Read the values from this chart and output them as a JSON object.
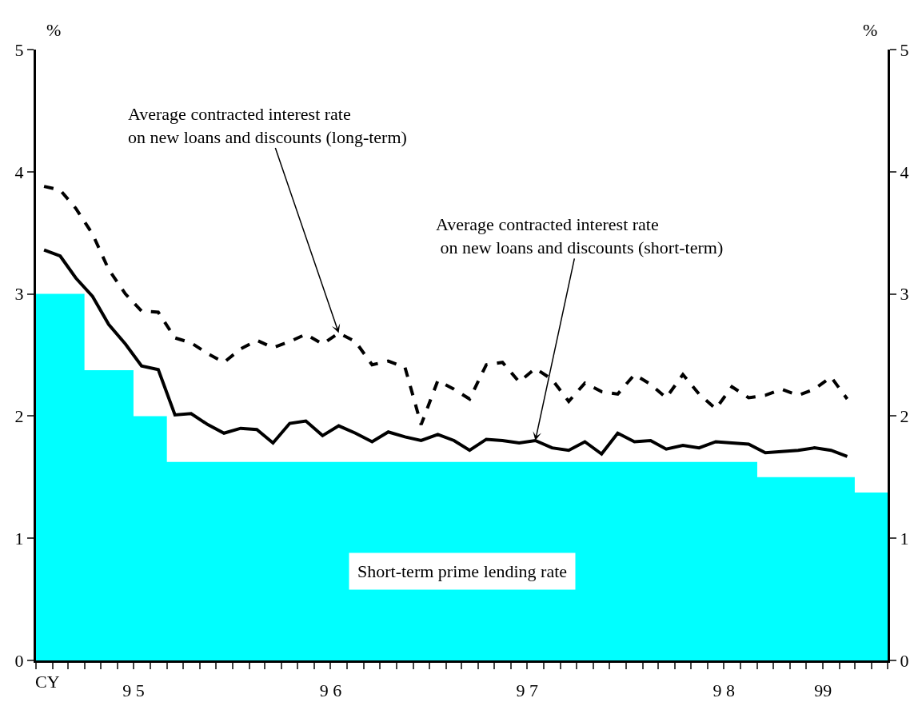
{
  "chart_data": {
    "type": "line",
    "xlabel": "CY",
    "ylabel": "%",
    "y2label": "%",
    "xlim": [
      "1995-01",
      "1999-05"
    ],
    "xticks": [
      {
        "value": "1995-01",
        "label": null
      },
      {
        "value": "1995-02",
        "label": null
      },
      {
        "value": "1995-03",
        "label": null
      },
      {
        "value": "1995-04",
        "label": null
      },
      {
        "value": "1995-05",
        "label": null
      },
      {
        "value": "1995-06",
        "label": null
      },
      {
        "value": "1995-07",
        "label": "9 5"
      },
      {
        "value": "1995-08",
        "label": null
      },
      {
        "value": "1995-09",
        "label": null
      },
      {
        "value": "1995-10",
        "label": null
      },
      {
        "value": "1995-11",
        "label": null
      },
      {
        "value": "1995-12",
        "label": null
      },
      {
        "value": "1996-01",
        "label": null
      },
      {
        "value": "1996-02",
        "label": null
      },
      {
        "value": "1996-03",
        "label": null
      },
      {
        "value": "1996-04",
        "label": null
      },
      {
        "value": "1996-05",
        "label": null
      },
      {
        "value": "1996-06",
        "label": null
      },
      {
        "value": "1996-07",
        "label": "9 6"
      },
      {
        "value": "1996-08",
        "label": null
      },
      {
        "value": "1996-09",
        "label": null
      },
      {
        "value": "1996-10",
        "label": null
      },
      {
        "value": "1996-11",
        "label": null
      },
      {
        "value": "1996-12",
        "label": null
      },
      {
        "value": "1997-01",
        "label": null
      },
      {
        "value": "1997-02",
        "label": null
      },
      {
        "value": "1997-03",
        "label": null
      },
      {
        "value": "1997-04",
        "label": null
      },
      {
        "value": "1997-05",
        "label": null
      },
      {
        "value": "1997-06",
        "label": null
      },
      {
        "value": "1997-07",
        "label": "9 7"
      },
      {
        "value": "1997-08",
        "label": null
      },
      {
        "value": "1997-09",
        "label": null
      },
      {
        "value": "1997-10",
        "label": null
      },
      {
        "value": "1997-11",
        "label": null
      },
      {
        "value": "1997-12",
        "label": null
      },
      {
        "value": "1998-01",
        "label": null
      },
      {
        "value": "1998-02",
        "label": null
      },
      {
        "value": "1998-03",
        "label": null
      },
      {
        "value": "1998-04",
        "label": null
      },
      {
        "value": "1998-05",
        "label": null
      },
      {
        "value": "1998-06",
        "label": null
      },
      {
        "value": "1998-07",
        "label": "9 8"
      },
      {
        "value": "1998-08",
        "label": null
      },
      {
        "value": "1998-09",
        "label": null
      },
      {
        "value": "1998-10",
        "label": null
      },
      {
        "value": "1998-11",
        "label": null
      },
      {
        "value": "1998-12",
        "label": null
      },
      {
        "value": "1999-01",
        "label": "99"
      },
      {
        "value": "1999-02",
        "label": null
      },
      {
        "value": "1999-03",
        "label": null
      },
      {
        "value": "1999-04",
        "label": null
      },
      {
        "value": "1999-05",
        "label": null
      }
    ],
    "ylim": [
      0,
      5
    ],
    "yticks": [
      0,
      1,
      2,
      3,
      4,
      5
    ],
    "y2lim": [
      0,
      5
    ],
    "y2ticks": [
      0,
      1,
      2,
      3,
      4,
      5
    ],
    "legend": false,
    "marker": "none",
    "series": [
      {
        "type": "area",
        "color": "#00ffff",
        "x": [
          "1995-01",
          "1995-02",
          "1995-03",
          "1995-04",
          "1995-05",
          "1995-06",
          "1995-07",
          "1995-08",
          "1995-09",
          "1995-10",
          "1995-11",
          "1995-12",
          "1996-01",
          "1996-02",
          "1996-03",
          "1996-04",
          "1996-05",
          "1996-06",
          "1996-07",
          "1996-08",
          "1996-09",
          "1996-10",
          "1996-11",
          "1996-12",
          "1997-01",
          "1997-02",
          "1997-03",
          "1997-04",
          "1997-05",
          "1997-06",
          "1997-07",
          "1997-08",
          "1997-09",
          "1997-10",
          "1997-11",
          "1997-12",
          "1998-01",
          "1998-02",
          "1998-03",
          "1998-04",
          "1998-05",
          "1998-06",
          "1998-07",
          "1998-08",
          "1998-09",
          "1998-10",
          "1998-11",
          "1998-12",
          "1999-01",
          "1999-02",
          "1999-03",
          "1999-04",
          "1999-05"
        ],
        "values": [
          3.0,
          3.0,
          3.0,
          2.375,
          2.375,
          2.375,
          2.0,
          2.0,
          1.625,
          1.625,
          1.625,
          1.625,
          1.625,
          1.625,
          1.625,
          1.625,
          1.625,
          1.625,
          1.625,
          1.625,
          1.625,
          1.625,
          1.625,
          1.625,
          1.625,
          1.625,
          1.625,
          1.625,
          1.625,
          1.625,
          1.625,
          1.625,
          1.625,
          1.625,
          1.625,
          1.625,
          1.625,
          1.625,
          1.625,
          1.625,
          1.625,
          1.625,
          1.625,
          1.625,
          1.5,
          1.5,
          1.5,
          1.5,
          1.5,
          1.5,
          1.375,
          1.375,
          1.375
        ]
      },
      {
        "color": "#000000",
        "line_style": "dashed",
        "x": [
          "1995-01-16",
          "1995-02-15",
          "1995-03-16",
          "1995-04-16",
          "1995-05-16",
          "1995-06-16",
          "1995-07-16",
          "1995-08-16",
          "1995-09-16",
          "1995-10-16",
          "1995-11-16",
          "1995-12-16",
          "1996-01-16",
          "1996-02-15",
          "1996-03-16",
          "1996-04-16",
          "1996-05-16",
          "1996-06-16",
          "1996-07-16",
          "1996-08-16",
          "1996-09-16",
          "1996-10-16",
          "1996-11-16",
          "1996-12-16",
          "1997-01-16",
          "1997-02-15",
          "1997-03-16",
          "1997-04-16",
          "1997-05-16",
          "1997-06-16",
          "1997-07-16",
          "1997-08-16",
          "1997-09-16",
          "1997-10-16",
          "1997-11-16",
          "1997-12-16",
          "1998-01-16",
          "1998-02-15",
          "1998-03-16",
          "1998-04-16",
          "1998-05-16",
          "1998-06-16",
          "1998-07-16",
          "1998-08-16",
          "1998-09-16",
          "1998-10-16",
          "1998-11-16",
          "1998-12-16",
          "1999-01-16",
          "1999-02-15"
        ],
        "values": [
          3.88,
          3.85,
          3.7,
          3.49,
          3.2,
          3.0,
          2.86,
          2.85,
          2.64,
          2.6,
          2.51,
          2.44,
          2.55,
          2.62,
          2.56,
          2.61,
          2.67,
          2.59,
          2.68,
          2.61,
          2.42,
          2.45,
          2.4,
          1.93,
          2.29,
          2.22,
          2.14,
          2.42,
          2.44,
          2.28,
          2.39,
          2.3,
          2.12,
          2.27,
          2.2,
          2.18,
          2.34,
          2.26,
          2.15,
          2.34,
          2.18,
          2.06,
          2.24,
          2.15,
          2.17,
          2.22,
          2.17,
          2.22,
          2.32,
          2.14
        ]
      },
      {
        "color": "#000000",
        "line_style": "solid",
        "x": [
          "1995-01-16",
          "1995-02-15",
          "1995-03-16",
          "1995-04-16",
          "1995-05-16",
          "1995-06-16",
          "1995-07-16",
          "1995-08-16",
          "1995-09-16",
          "1995-10-16",
          "1995-11-16",
          "1995-12-16",
          "1996-01-16",
          "1996-02-15",
          "1996-03-16",
          "1996-04-16",
          "1996-05-16",
          "1996-06-16",
          "1996-07-16",
          "1996-08-16",
          "1996-09-16",
          "1996-10-16",
          "1996-11-16",
          "1996-12-16",
          "1997-01-16",
          "1997-02-15",
          "1997-03-16",
          "1997-04-16",
          "1997-05-16",
          "1997-06-16",
          "1997-07-16",
          "1997-08-16",
          "1997-09-16",
          "1997-10-16",
          "1997-11-16",
          "1997-12-16",
          "1998-01-16",
          "1998-02-15",
          "1998-03-16",
          "1998-04-16",
          "1998-05-16",
          "1998-06-16",
          "1998-07-16",
          "1998-08-16",
          "1998-09-16",
          "1998-10-16",
          "1998-11-16",
          "1998-12-16",
          "1999-01-16",
          "1999-02-15"
        ],
        "values": [
          3.36,
          3.31,
          3.13,
          2.98,
          2.75,
          2.59,
          2.41,
          2.38,
          2.01,
          2.02,
          1.93,
          1.86,
          1.9,
          1.89,
          1.78,
          1.94,
          1.96,
          1.84,
          1.92,
          1.86,
          1.79,
          1.87,
          1.83,
          1.8,
          1.85,
          1.8,
          1.72,
          1.81,
          1.8,
          1.78,
          1.8,
          1.74,
          1.72,
          1.79,
          1.69,
          1.86,
          1.79,
          1.8,
          1.73,
          1.76,
          1.74,
          1.79,
          1.78,
          1.77,
          1.7,
          1.71,
          1.72,
          1.74,
          1.72,
          1.67
        ]
      }
    ],
    "annotations": [
      {
        "text": "Average contracted interest rate\non new loans and discounts (long-term)",
        "x": "1996-07-16",
        "y": 2.68
      },
      {
        "text": "Average contracted interest rate\n on new loans and discounts (short-term)",
        "x": "1997-07-16",
        "y": 1.8
      },
      "Short-term prime lending rate"
    ]
  }
}
